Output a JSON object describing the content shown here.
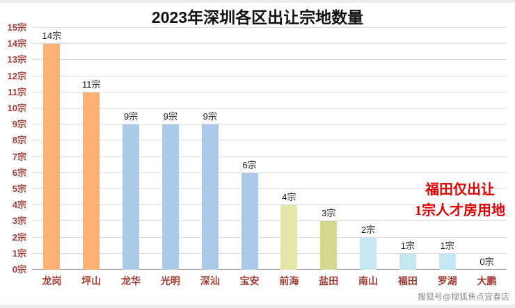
{
  "chart_data": {
    "type": "bar",
    "title": "2023年深圳各区出让宗地数量",
    "categories": [
      "龙岗",
      "坪山",
      "龙华",
      "光明",
      "深汕",
      "宝安",
      "前海",
      "盐田",
      "南山",
      "福田",
      "罗湖",
      "大鹏"
    ],
    "values": [
      14,
      11,
      9,
      9,
      9,
      6,
      4,
      3,
      2,
      1,
      1,
      0
    ],
    "value_labels": [
      "14宗",
      "11宗",
      "9宗",
      "9宗",
      "9宗",
      "6宗",
      "4宗",
      "3宗",
      "2宗",
      "1宗",
      "1宗",
      "0宗"
    ],
    "bar_colors": [
      "#FBB074",
      "#FBB074",
      "#ABC9E8",
      "#ABC9E8",
      "#ABC9E8",
      "#ABC9E8",
      "#E5E7A6",
      "#D3D98C",
      "#C4E7F2",
      "#C4E7F2",
      "#C4E7F2",
      "#C4E7F2"
    ],
    "ylim": [
      0,
      15
    ],
    "yticks": [
      "0宗",
      "1宗",
      "2宗",
      "3宗",
      "4宗",
      "5宗",
      "6宗",
      "7宗",
      "8宗",
      "9宗",
      "10宗",
      "11宗",
      "12宗",
      "13宗",
      "14宗",
      "15宗"
    ],
    "grid": true,
    "legend": "none",
    "xlabel": "",
    "ylabel": ""
  },
  "annotation": {
    "line1": "福田仅出让",
    "line2": "1宗人才房用地",
    "color": "#DD0000"
  },
  "watermark": "搜狐号@搜狐焦点宜春店",
  "colors": {
    "axis_label": "#9E3B33",
    "grid_line": "#DBDBDB",
    "baseline": "#9A9A9A",
    "value_label": "#1A1A1A",
    "orange_bar": "#FBB074",
    "blue_bar": "#ABC9E8",
    "yellow_bar": "#E5E7A6",
    "olive_bar": "#D3D98C",
    "cyan_bar": "#C4E7F2",
    "watermark": "#8C8C8C"
  }
}
